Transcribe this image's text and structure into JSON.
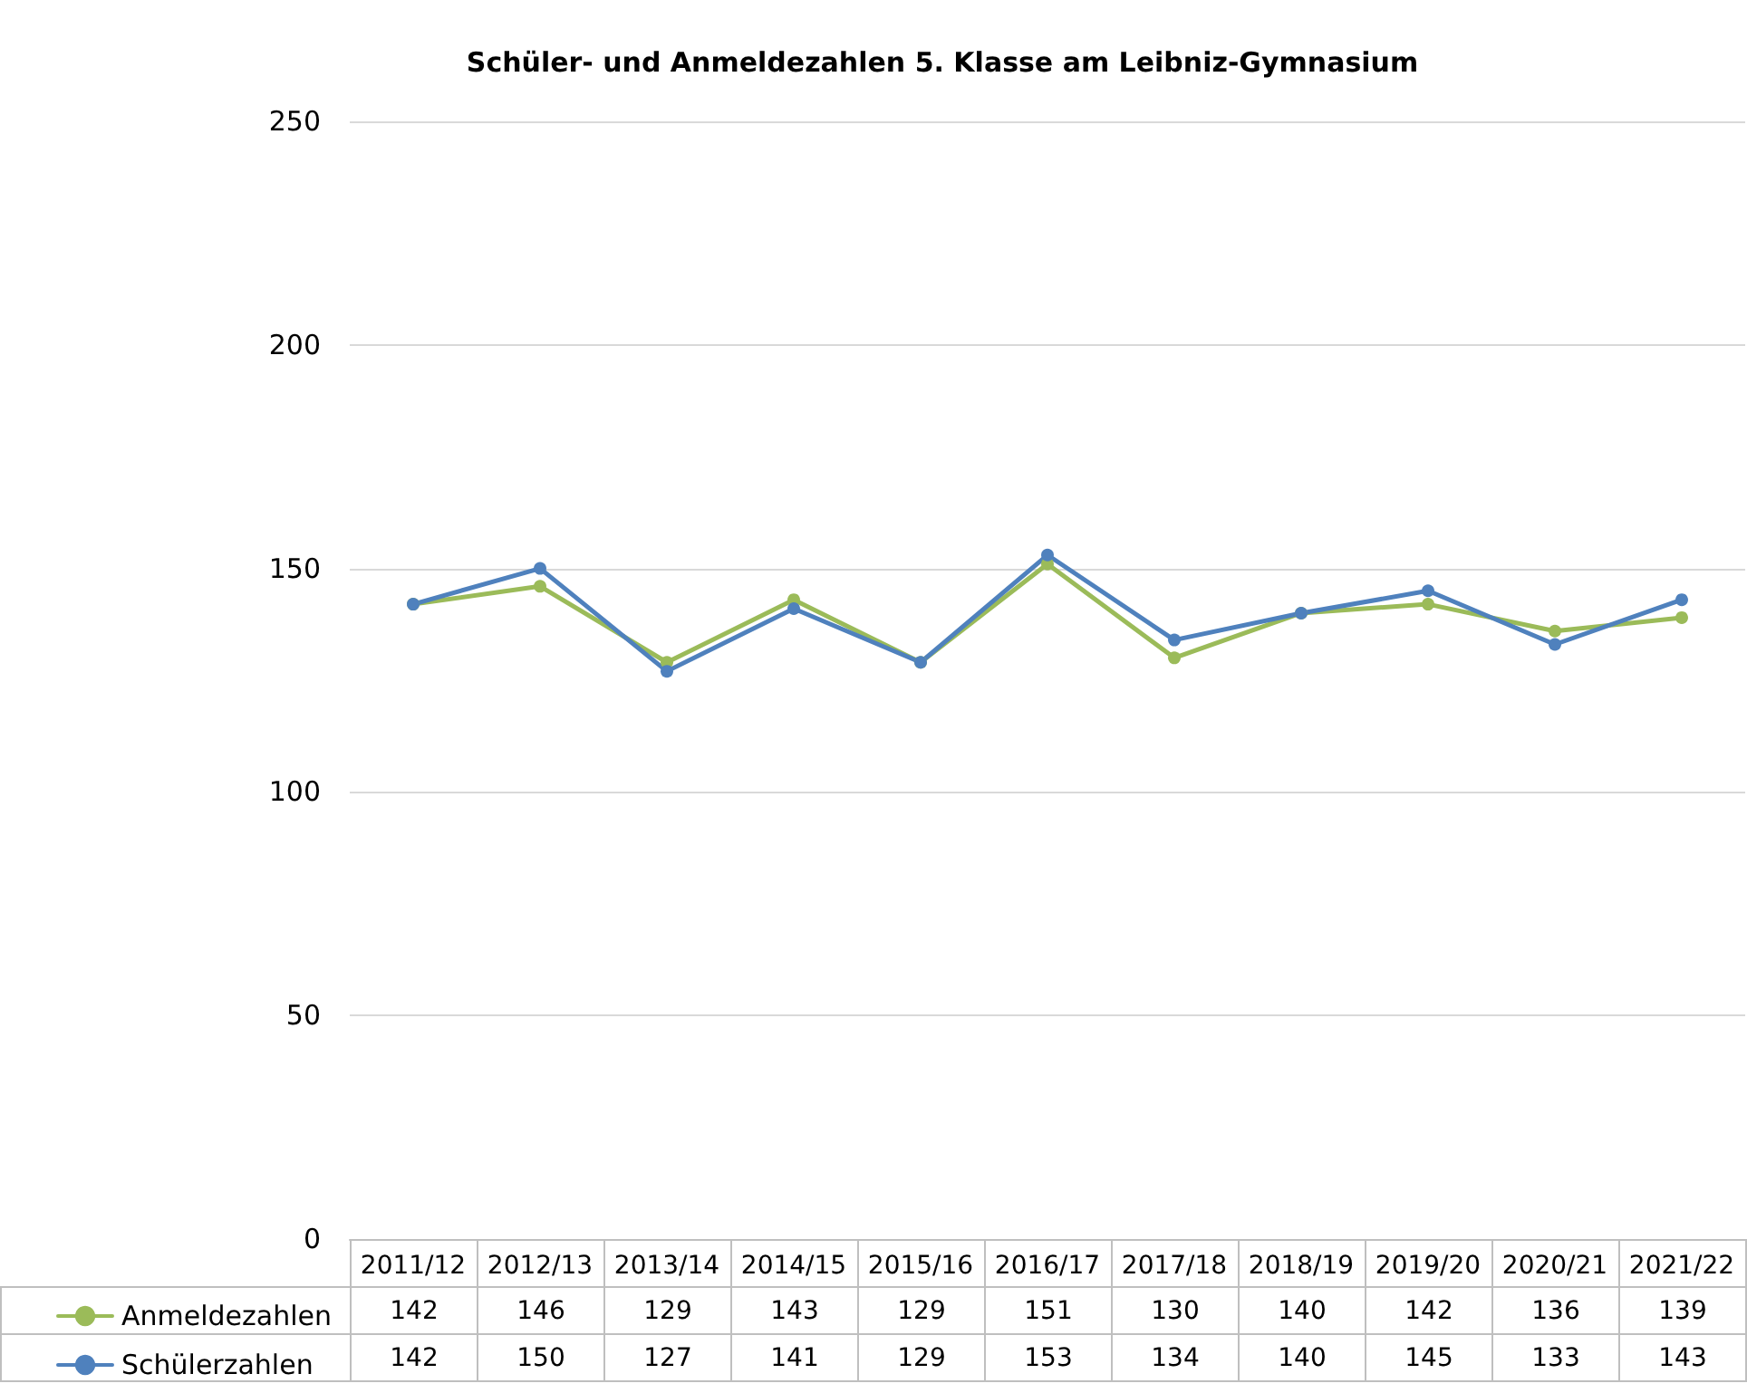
{
  "chart_data": {
    "type": "line",
    "title": "Schüler- und Anmeldezahlen 5. Klasse am Leibniz-Gymnasium",
    "categories": [
      "2011/12",
      "2012/13",
      "2013/14",
      "2014/15",
      "2015/16",
      "2016/17",
      "2017/18",
      "2018/19",
      "2019/20",
      "2020/21",
      "2021/22"
    ],
    "series": [
      {
        "name": "Anmeldezahlen",
        "color": "#9bbb59",
        "values": [
          142,
          146,
          129,
          143,
          129,
          151,
          130,
          140,
          142,
          136,
          139
        ]
      },
      {
        "name": "Schülerzahlen",
        "color": "#4f81bd",
        "values": [
          142,
          150,
          127,
          141,
          129,
          153,
          134,
          140,
          145,
          133,
          143
        ]
      }
    ],
    "ylim": [
      0,
      250
    ],
    "yticks": [
      0,
      50,
      100,
      150,
      200,
      250
    ],
    "grid": "y",
    "legend": "bottom left",
    "marker": "circle",
    "line_style": "solid",
    "data_labels": true
  }
}
